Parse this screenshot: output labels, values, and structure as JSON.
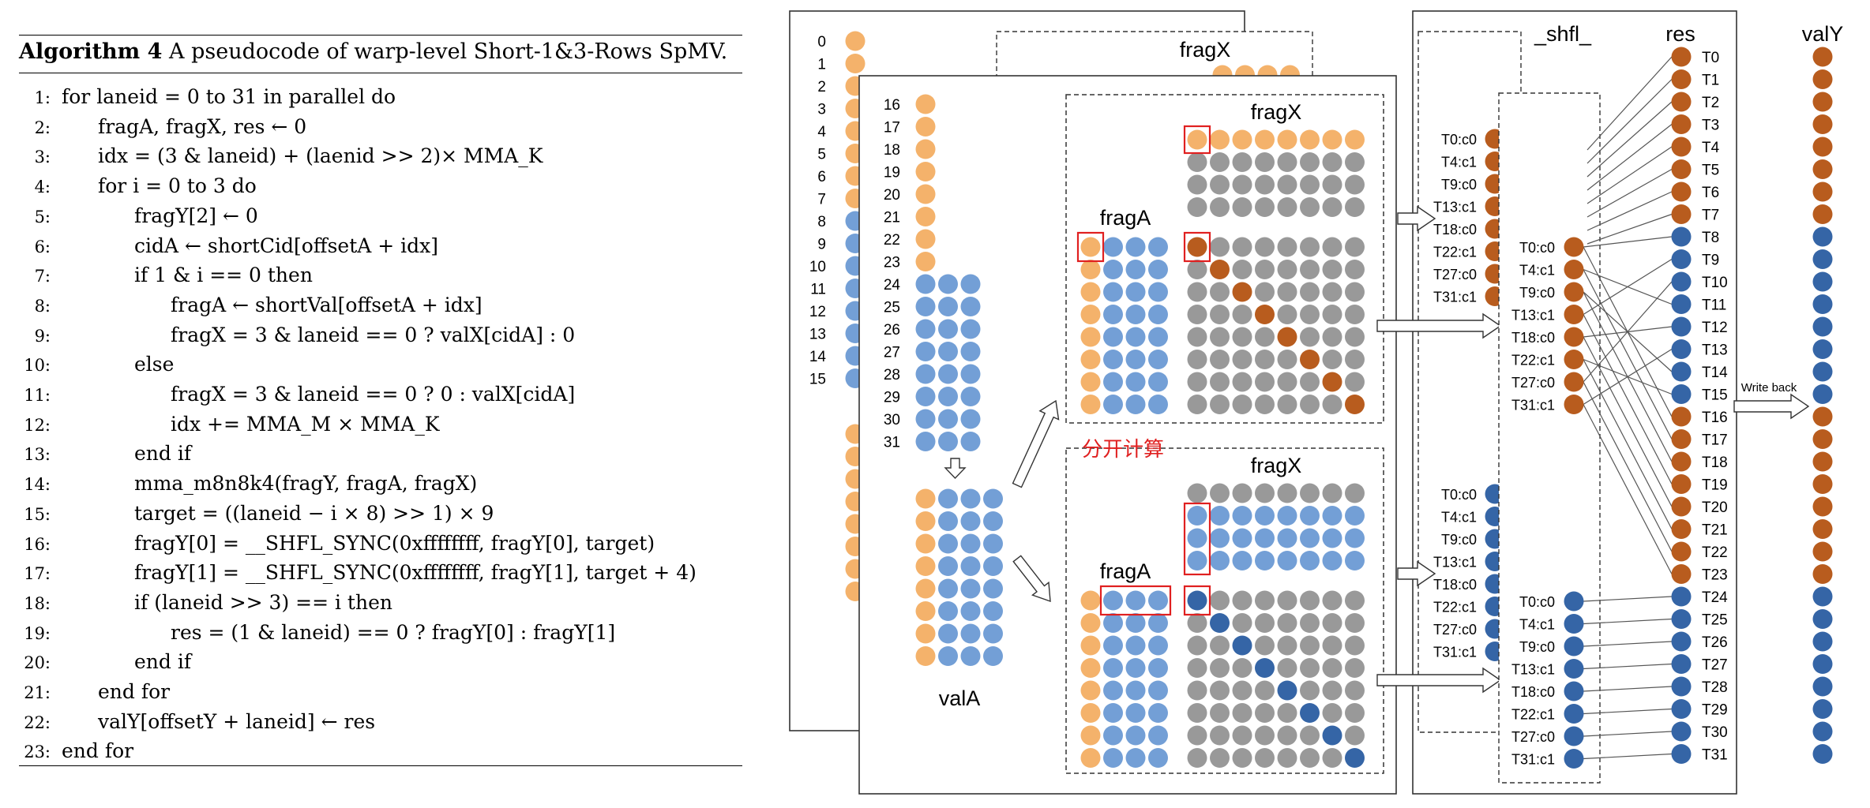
{
  "algorithm": {
    "title_label": "Algorithm 4",
    "title_text": "A pseudocode of warp-level Short-1&3-Rows SpMV.",
    "lines": [
      {
        "n": "1:",
        "indent": 0,
        "text": "for laneid = 0 to 31 in parallel do"
      },
      {
        "n": "2:",
        "indent": 1,
        "text": "fragA, fragX, res ← 0"
      },
      {
        "n": "3:",
        "indent": 1,
        "text": "idx = (3 & laneid) + (laenid >> 2)× MMA_K"
      },
      {
        "n": "4:",
        "indent": 1,
        "text": "for i = 0 to 3 do"
      },
      {
        "n": "5:",
        "indent": 2,
        "text": "fragY[2] ← 0"
      },
      {
        "n": "6:",
        "indent": 2,
        "text": "cidA ← shortCid[offsetA + idx]"
      },
      {
        "n": "7:",
        "indent": 2,
        "text": "if 1 & i == 0 then"
      },
      {
        "n": "8:",
        "indent": 3,
        "text": "fragA ← shortVal[offsetA + idx]"
      },
      {
        "n": "9:",
        "indent": 3,
        "text": "fragX = 3 & laneid == 0 ? valX[cidA] : 0"
      },
      {
        "n": "10:",
        "indent": 2,
        "text": "else"
      },
      {
        "n": "11:",
        "indent": 3,
        "text": "fragX = 3 & laneid == 0 ? 0 : valX[cidA]"
      },
      {
        "n": "12:",
        "indent": 3,
        "text": "idx += MMA_M × MMA_K"
      },
      {
        "n": "13:",
        "indent": 2,
        "text": "end if"
      },
      {
        "n": "14:",
        "indent": 2,
        "text": "mma_m8n8k4(fragY, fragA, fragX)"
      },
      {
        "n": "15:",
        "indent": 2,
        "text": "target = ((laneid − i × 8) >> 1) × 9"
      },
      {
        "n": "16:",
        "indent": 2,
        "text": "fragY[0] = __SHFL_SYNC(0xffffffff, fragY[0], target)"
      },
      {
        "n": "17:",
        "indent": 2,
        "text": "fragY[1] = __SHFL_SYNC(0xffffffff, fragY[1], target + 4)"
      },
      {
        "n": "18:",
        "indent": 2,
        "text": "if (laneid >> 3) == i then"
      },
      {
        "n": "19:",
        "indent": 3,
        "text": "res = (1 & laneid) == 0 ? fragY[0] : fragY[1]"
      },
      {
        "n": "20:",
        "indent": 2,
        "text": "end if"
      },
      {
        "n": "21:",
        "indent": 1,
        "text": "end for"
      },
      {
        "n": "22:",
        "indent": 1,
        "text": "valY[offsetY + laneid] ← res"
      },
      {
        "n": "23:",
        "indent": 0,
        "text": "end for"
      }
    ]
  },
  "diagram": {
    "colors": {
      "orange_light": "#F4B26B",
      "blue": "#739FD6",
      "gray": "#999999",
      "brown": "#B85C1E",
      "dark_blue": "#3565A6",
      "red": "#E02020"
    },
    "back_rows": [
      "0",
      "1",
      "2",
      "3",
      "4",
      "5",
      "6",
      "7",
      "8",
      "9",
      "10",
      "11",
      "12",
      "13",
      "14",
      "15"
    ],
    "front_rows": [
      "16",
      "17",
      "18",
      "19",
      "20",
      "21",
      "22",
      "23",
      "24",
      "25",
      "26",
      "27",
      "28",
      "29",
      "30",
      "31"
    ],
    "label_fragX": "fragX",
    "label_fragA": "fragA",
    "label_valA": "valA",
    "label_split": "分开计算",
    "label_shfl": "_shfl_",
    "label_res": "res",
    "label_valY": "valY",
    "label_write_back": "Write back",
    "back_tc_labels": [
      "T0:c0",
      "T4:c1",
      "T9:c0",
      "T13:c1",
      "T18:c0",
      "T22:c1",
      "T27:c0",
      "T31:c1"
    ],
    "tc_labels": [
      "T0:c0",
      "T4:c1",
      "T9:c0",
      "T13:c1",
      "T18:c0",
      "T22:c1",
      "T27:c0",
      "T31:c1"
    ],
    "threads": [
      "T0",
      "T1",
      "T2",
      "T3",
      "T4",
      "T5",
      "T6",
      "T7",
      "T8",
      "T9",
      "T10",
      "T11",
      "T12",
      "T13",
      "T14",
      "T15",
      "T16",
      "T17",
      "T18",
      "T19",
      "T20",
      "T21",
      "T22",
      "T23",
      "T24",
      "T25",
      "T26",
      "T27",
      "T28",
      "T29",
      "T30",
      "T31"
    ]
  }
}
